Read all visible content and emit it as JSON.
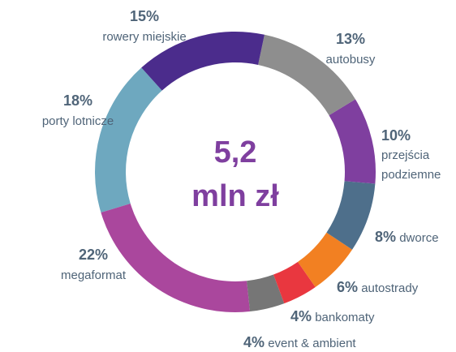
{
  "chart_data": {
    "type": "donut",
    "center_text": [
      "5,2",
      "mln zł"
    ],
    "categories": [
      "rowery miejskie",
      "autobusy",
      "przejścia podziemne",
      "dworce",
      "autostrady",
      "bankomaty",
      "event & ambient",
      "megaformat",
      "porty lotnicze"
    ],
    "values": [
      15,
      13,
      10,
      8,
      6,
      4,
      4,
      22,
      18
    ],
    "value_labels": [
      "15%",
      "13%",
      "10%",
      "8%",
      "6%",
      "4%",
      "4%",
      "22%",
      "18%"
    ],
    "colors": [
      "#4b2c8c",
      "#8e8e8e",
      "#7f3f9f",
      "#4e6f8b",
      "#f28022",
      "#e9373f",
      "#767676",
      "#aa479d",
      "#6ea8bf"
    ]
  }
}
